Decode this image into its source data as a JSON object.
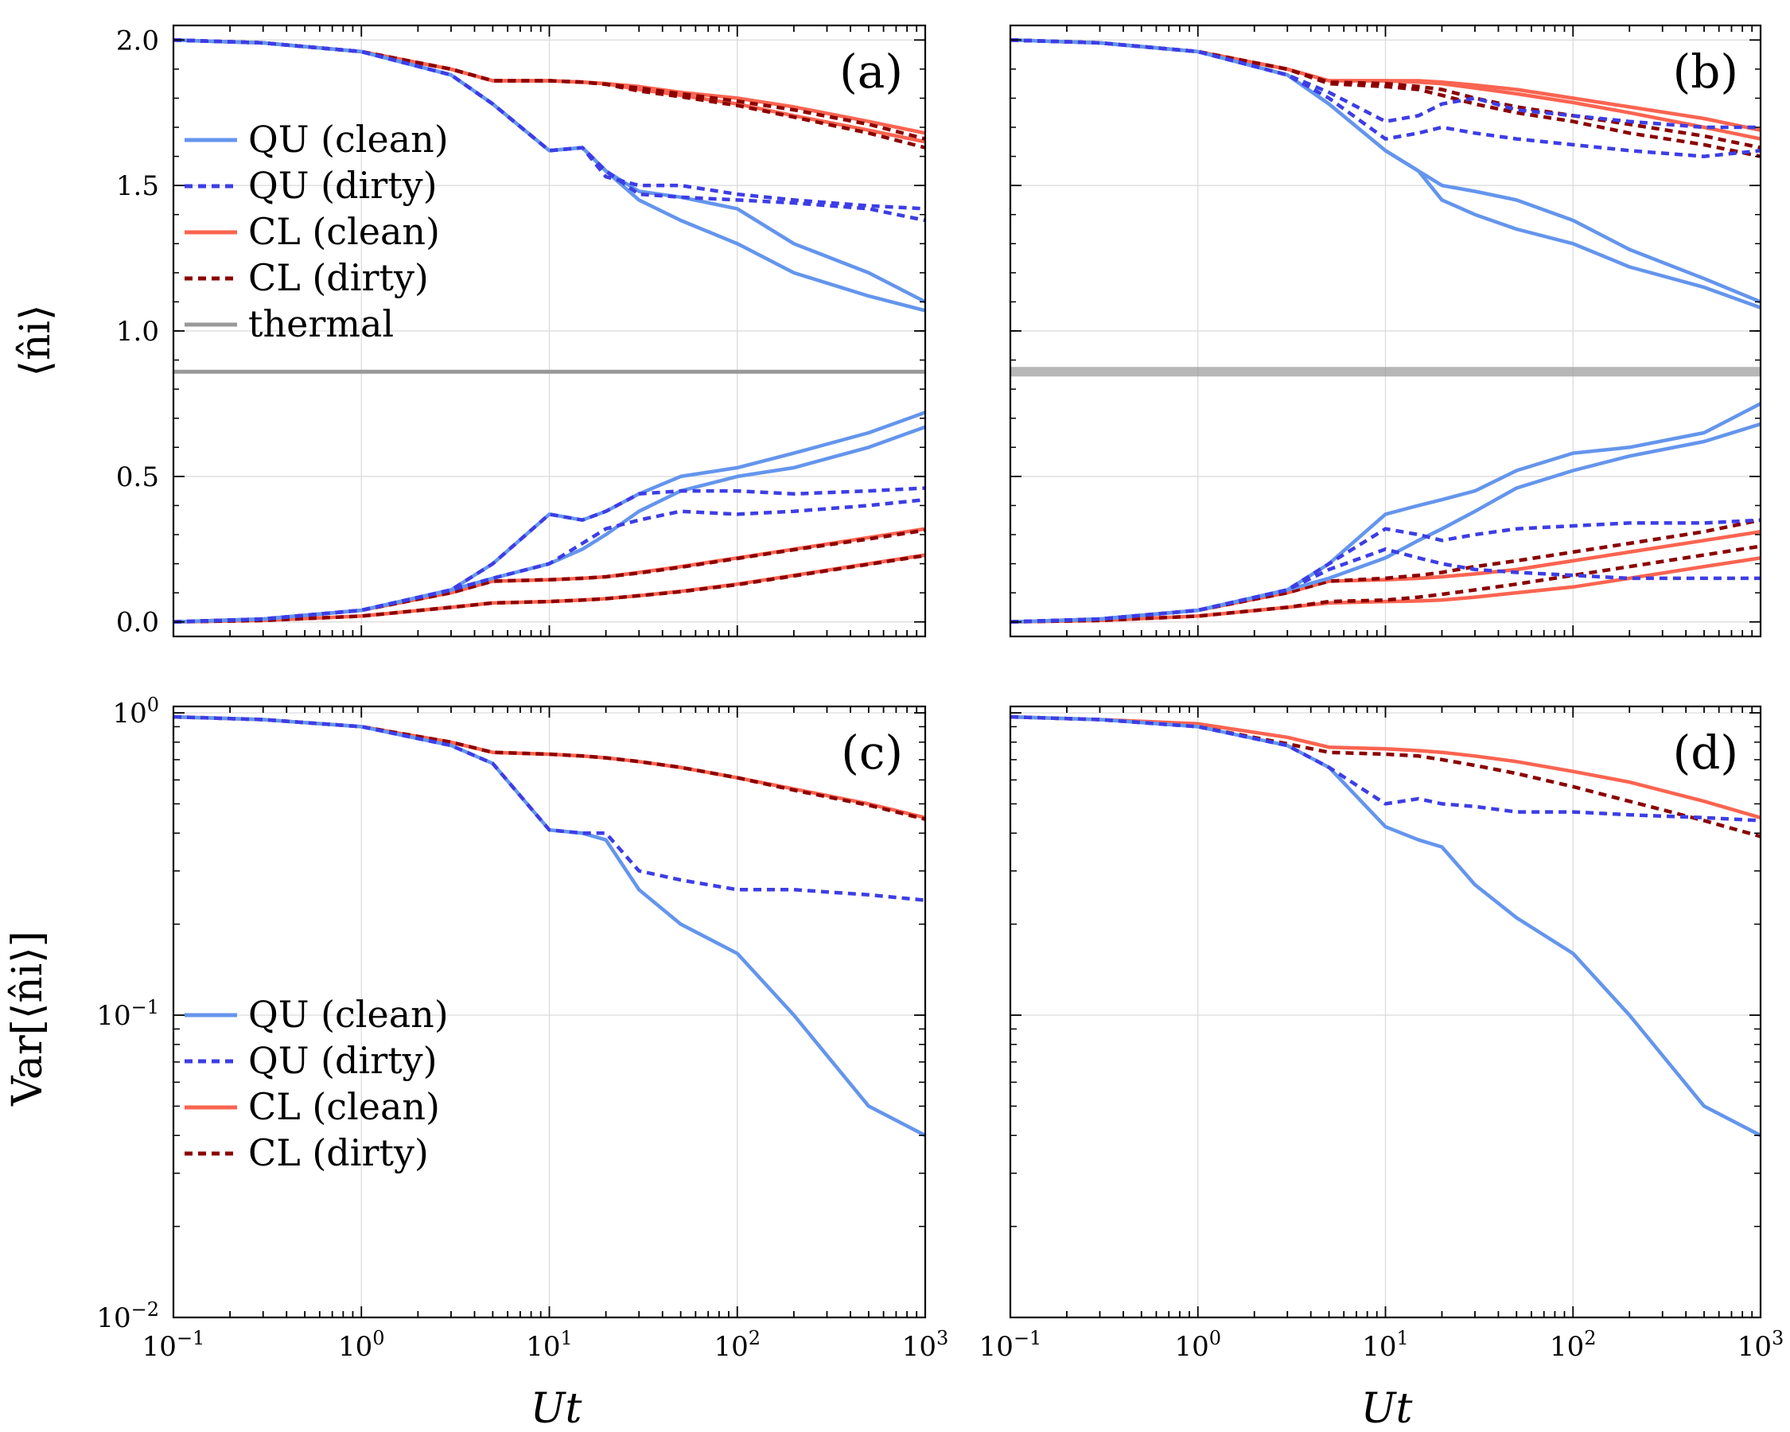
{
  "chart_data": {
    "type": "line",
    "x_axis": {
      "label": "Ut",
      "scale": "log",
      "xlim": [
        0.1,
        1000
      ],
      "tick_values": [
        0.1,
        1,
        10,
        100,
        1000
      ],
      "tick_labels": [
        "10−1",
        "100",
        "101",
        "102",
        "103"
      ]
    },
    "top_y_axis": {
      "label": "⟨n̂i⟩",
      "ylim": [
        -0.05,
        2.05
      ],
      "tick_values": [
        0.0,
        0.5,
        1.0,
        1.5,
        2.0
      ],
      "tick_labels": [
        "0.0",
        "0.5",
        "1.0",
        "1.5",
        "2.0"
      ]
    },
    "bottom_y_axis": {
      "label": "Var[⟨n̂i⟩]",
      "scale": "log",
      "ylim": [
        0.01,
        1.05
      ],
      "tick_values": [
        1,
        0.1,
        0.01
      ],
      "tick_labels": [
        "100",
        "10−1",
        "10−2"
      ]
    },
    "legend_top": [
      "QU (clean)",
      "QU (dirty)",
      "CL (clean)",
      "CL (dirty)",
      "thermal"
    ],
    "legend_bottom": [
      "QU (clean)",
      "QU (dirty)",
      "CL (clean)",
      "CL (dirty)"
    ],
    "colors": {
      "qu_clean": "#6495ed",
      "qu_dirty": "#3d3de6",
      "cl_clean": "#fa6450",
      "cl_dirty": "#8b0000",
      "thermal": "#999999",
      "grid": "#d9d9d9"
    },
    "x_sample": [
      0.1,
      0.3,
      1,
      3,
      5,
      10,
      15,
      20,
      30,
      50,
      100,
      200,
      500,
      1000
    ],
    "panels": [
      {
        "id": "a",
        "label": "(a)",
        "kind": "density",
        "thermal": 0.86,
        "series": [
          {
            "name": "QU (clean)",
            "style": "qu_clean",
            "y": [
              2.0,
              1.99,
              1.96,
              1.88,
              1.78,
              1.62,
              1.63,
              1.55,
              1.45,
              1.38,
              1.3,
              1.2,
              1.12,
              1.07
            ]
          },
          {
            "name": "QU (clean)",
            "style": "qu_clean",
            "y": [
              2.0,
              1.99,
              1.96,
              1.88,
              1.78,
              1.62,
              1.63,
              1.55,
              1.48,
              1.46,
              1.42,
              1.3,
              1.2,
              1.1
            ]
          },
          {
            "name": "QU (clean)",
            "style": "qu_clean",
            "y": [
              0.0,
              0.01,
              0.04,
              0.11,
              0.2,
              0.37,
              0.35,
              0.38,
              0.44,
              0.5,
              0.53,
              0.58,
              0.65,
              0.72
            ]
          },
          {
            "name": "QU (clean)",
            "style": "qu_clean",
            "y": [
              0.0,
              0.01,
              0.04,
              0.11,
              0.15,
              0.2,
              0.25,
              0.3,
              0.38,
              0.45,
              0.5,
              0.53,
              0.6,
              0.67
            ]
          },
          {
            "name": "QU (dirty)",
            "style": "qu_dirty",
            "y": [
              2.0,
              1.99,
              1.96,
              1.88,
              1.78,
              1.62,
              1.63,
              1.53,
              1.5,
              1.5,
              1.47,
              1.45,
              1.43,
              1.42
            ]
          },
          {
            "name": "QU (dirty)",
            "style": "qu_dirty",
            "y": [
              2.0,
              1.99,
              1.96,
              1.88,
              1.78,
              1.62,
              1.63,
              1.55,
              1.47,
              1.46,
              1.45,
              1.44,
              1.42,
              1.38
            ]
          },
          {
            "name": "QU (dirty)",
            "style": "qu_dirty",
            "y": [
              0.0,
              0.01,
              0.04,
              0.11,
              0.2,
              0.37,
              0.35,
              0.38,
              0.44,
              0.45,
              0.45,
              0.44,
              0.45,
              0.46
            ]
          },
          {
            "name": "QU (dirty)",
            "style": "qu_dirty",
            "y": [
              0.0,
              0.01,
              0.04,
              0.11,
              0.15,
              0.2,
              0.27,
              0.32,
              0.35,
              0.38,
              0.37,
              0.38,
              0.4,
              0.42
            ]
          },
          {
            "name": "CL (clean)",
            "style": "cl_clean",
            "y": [
              2.0,
              1.99,
              1.96,
              1.9,
              1.86,
              1.86,
              1.855,
              1.85,
              1.84,
              1.82,
              1.8,
              1.77,
              1.72,
              1.68
            ]
          },
          {
            "name": "CL (clean)",
            "style": "cl_clean",
            "y": [
              2.0,
              1.99,
              1.96,
              1.9,
              1.86,
              1.86,
              1.855,
              1.85,
              1.83,
              1.81,
              1.78,
              1.74,
              1.69,
              1.65
            ]
          },
          {
            "name": "CL (clean)",
            "style": "cl_clean",
            "y": [
              0.0,
              0.01,
              0.04,
              0.1,
              0.14,
              0.145,
              0.15,
              0.155,
              0.17,
              0.19,
              0.22,
              0.25,
              0.29,
              0.32
            ]
          },
          {
            "name": "CL (clean)",
            "style": "cl_clean",
            "y": [
              0.0,
              0.005,
              0.02,
              0.05,
              0.065,
              0.07,
              0.075,
              0.08,
              0.09,
              0.105,
              0.13,
              0.16,
              0.2,
              0.23
            ]
          },
          {
            "name": "CL (dirty)",
            "style": "cl_dirty",
            "y": [
              2.0,
              1.99,
              1.96,
              1.9,
              1.86,
              1.86,
              1.855,
              1.848,
              1.835,
              1.815,
              1.79,
              1.76,
              1.71,
              1.66
            ]
          },
          {
            "name": "CL (dirty)",
            "style": "cl_dirty",
            "y": [
              2.0,
              1.99,
              1.96,
              1.9,
              1.86,
              1.86,
              1.855,
              1.848,
              1.825,
              1.805,
              1.775,
              1.735,
              1.68,
              1.63
            ]
          },
          {
            "name": "CL (dirty)",
            "style": "cl_dirty",
            "y": [
              0.0,
              0.01,
              0.04,
              0.1,
              0.14,
              0.145,
              0.15,
              0.155,
              0.168,
              0.188,
              0.218,
              0.248,
              0.285,
              0.315
            ]
          },
          {
            "name": "CL (dirty)",
            "style": "cl_dirty",
            "y": [
              0.0,
              0.005,
              0.02,
              0.05,
              0.065,
              0.07,
              0.075,
              0.08,
              0.09,
              0.104,
              0.128,
              0.158,
              0.198,
              0.228
            ]
          }
        ]
      },
      {
        "id": "b",
        "label": "(b)",
        "kind": "density",
        "thermal": 0.86,
        "series": [
          {
            "name": "QU (clean)",
            "style": "qu_clean",
            "y": [
              2.0,
              1.99,
              1.96,
              1.88,
              1.78,
              1.62,
              1.55,
              1.45,
              1.4,
              1.35,
              1.3,
              1.22,
              1.15,
              1.08
            ]
          },
          {
            "name": "QU (clean)",
            "style": "qu_clean",
            "y": [
              2.0,
              1.99,
              1.96,
              1.88,
              1.78,
              1.62,
              1.55,
              1.5,
              1.48,
              1.45,
              1.38,
              1.28,
              1.18,
              1.1
            ]
          },
          {
            "name": "QU (clean)",
            "style": "qu_clean",
            "y": [
              0.0,
              0.01,
              0.04,
              0.11,
              0.2,
              0.37,
              0.4,
              0.42,
              0.45,
              0.52,
              0.58,
              0.6,
              0.65,
              0.75
            ]
          },
          {
            "name": "QU (clean)",
            "style": "qu_clean",
            "y": [
              0.0,
              0.01,
              0.04,
              0.11,
              0.15,
              0.22,
              0.28,
              0.32,
              0.38,
              0.46,
              0.52,
              0.57,
              0.62,
              0.68
            ]
          },
          {
            "name": "QU (dirty)",
            "style": "qu_dirty",
            "y": [
              2.0,
              1.99,
              1.96,
              1.88,
              1.82,
              1.72,
              1.74,
              1.78,
              1.8,
              1.76,
              1.74,
              1.72,
              1.7,
              1.7
            ]
          },
          {
            "name": "QU (dirty)",
            "style": "qu_dirty",
            "y": [
              2.0,
              1.99,
              1.96,
              1.88,
              1.8,
              1.66,
              1.68,
              1.7,
              1.68,
              1.66,
              1.64,
              1.62,
              1.6,
              1.62
            ]
          },
          {
            "name": "QU (dirty)",
            "style": "qu_dirty",
            "y": [
              0.0,
              0.01,
              0.04,
              0.11,
              0.2,
              0.32,
              0.3,
              0.28,
              0.3,
              0.32,
              0.33,
              0.34,
              0.34,
              0.35
            ]
          },
          {
            "name": "QU (dirty)",
            "style": "qu_dirty",
            "y": [
              0.0,
              0.01,
              0.04,
              0.11,
              0.18,
              0.25,
              0.22,
              0.2,
              0.18,
              0.17,
              0.16,
              0.15,
              0.15,
              0.15
            ]
          },
          {
            "name": "CL (clean)",
            "style": "cl_clean",
            "y": [
              2.0,
              1.99,
              1.96,
              1.9,
              1.86,
              1.86,
              1.86,
              1.855,
              1.845,
              1.83,
              1.8,
              1.77,
              1.73,
              1.69
            ]
          },
          {
            "name": "CL (clean)",
            "style": "cl_clean",
            "y": [
              2.0,
              1.99,
              1.96,
              1.9,
              1.86,
              1.86,
              1.855,
              1.85,
              1.835,
              1.815,
              1.785,
              1.75,
              1.7,
              1.66
            ]
          },
          {
            "name": "CL (clean)",
            "style": "cl_clean",
            "y": [
              0.0,
              0.01,
              0.04,
              0.1,
              0.14,
              0.145,
              0.15,
              0.155,
              0.165,
              0.18,
              0.21,
              0.24,
              0.28,
              0.31
            ]
          },
          {
            "name": "CL (clean)",
            "style": "cl_clean",
            "y": [
              0.0,
              0.005,
              0.02,
              0.05,
              0.065,
              0.07,
              0.072,
              0.075,
              0.085,
              0.1,
              0.12,
              0.15,
              0.19,
              0.22
            ]
          },
          {
            "name": "CL (dirty)",
            "style": "cl_dirty",
            "y": [
              2.0,
              1.99,
              1.96,
              1.9,
              1.855,
              1.85,
              1.84,
              1.83,
              1.8,
              1.77,
              1.74,
              1.71,
              1.67,
              1.63
            ]
          },
          {
            "name": "CL (dirty)",
            "style": "cl_dirty",
            "y": [
              2.0,
              1.99,
              1.96,
              1.9,
              1.85,
              1.84,
              1.83,
              1.81,
              1.78,
              1.75,
              1.72,
              1.68,
              1.64,
              1.6
            ]
          },
          {
            "name": "CL (dirty)",
            "style": "cl_dirty",
            "y": [
              0.0,
              0.01,
              0.04,
              0.1,
              0.14,
              0.15,
              0.16,
              0.17,
              0.19,
              0.21,
              0.24,
              0.27,
              0.31,
              0.35
            ]
          },
          {
            "name": "CL (dirty)",
            "style": "cl_dirty",
            "y": [
              0.0,
              0.005,
              0.02,
              0.05,
              0.07,
              0.075,
              0.085,
              0.095,
              0.11,
              0.13,
              0.16,
              0.19,
              0.23,
              0.26
            ]
          }
        ]
      },
      {
        "id": "c",
        "label": "(c)",
        "kind": "variance",
        "series": [
          {
            "name": "QU (clean)",
            "style": "qu_clean",
            "y": [
              0.97,
              0.95,
              0.9,
              0.78,
              0.68,
              0.41,
              0.4,
              0.38,
              0.26,
              0.2,
              0.16,
              0.1,
              0.05,
              0.04
            ]
          },
          {
            "name": "QU (dirty)",
            "style": "qu_dirty",
            "y": [
              0.97,
              0.95,
              0.9,
              0.78,
              0.68,
              0.41,
              0.4,
              0.4,
              0.3,
              0.28,
              0.26,
              0.26,
              0.25,
              0.24
            ]
          },
          {
            "name": "CL (clean)",
            "style": "cl_clean",
            "y": [
              0.97,
              0.95,
              0.9,
              0.8,
              0.74,
              0.73,
              0.72,
              0.71,
              0.69,
              0.66,
              0.61,
              0.56,
              0.5,
              0.45
            ]
          },
          {
            "name": "CL (dirty)",
            "style": "cl_dirty",
            "y": [
              0.97,
              0.95,
              0.9,
              0.8,
              0.74,
              0.73,
              0.72,
              0.71,
              0.69,
              0.66,
              0.61,
              0.555,
              0.495,
              0.445
            ]
          }
        ]
      },
      {
        "id": "d",
        "label": "(d)",
        "kind": "variance",
        "series": [
          {
            "name": "QU (clean)",
            "style": "qu_clean",
            "y": [
              0.97,
              0.95,
              0.9,
              0.78,
              0.66,
              0.42,
              0.38,
              0.36,
              0.27,
              0.21,
              0.16,
              0.1,
              0.05,
              0.04
            ]
          },
          {
            "name": "QU (dirty)",
            "style": "qu_dirty",
            "y": [
              0.97,
              0.95,
              0.9,
              0.78,
              0.66,
              0.5,
              0.52,
              0.5,
              0.49,
              0.47,
              0.47,
              0.46,
              0.45,
              0.44
            ]
          },
          {
            "name": "CL (clean)",
            "style": "cl_clean",
            "y": [
              0.97,
              0.95,
              0.92,
              0.83,
              0.77,
              0.76,
              0.75,
              0.74,
              0.72,
              0.69,
              0.64,
              0.59,
              0.51,
              0.45
            ]
          },
          {
            "name": "CL (dirty)",
            "style": "cl_dirty",
            "y": [
              0.97,
              0.95,
              0.9,
              0.79,
              0.74,
              0.73,
              0.72,
              0.7,
              0.67,
              0.63,
              0.57,
              0.51,
              0.44,
              0.39
            ]
          }
        ]
      }
    ]
  }
}
